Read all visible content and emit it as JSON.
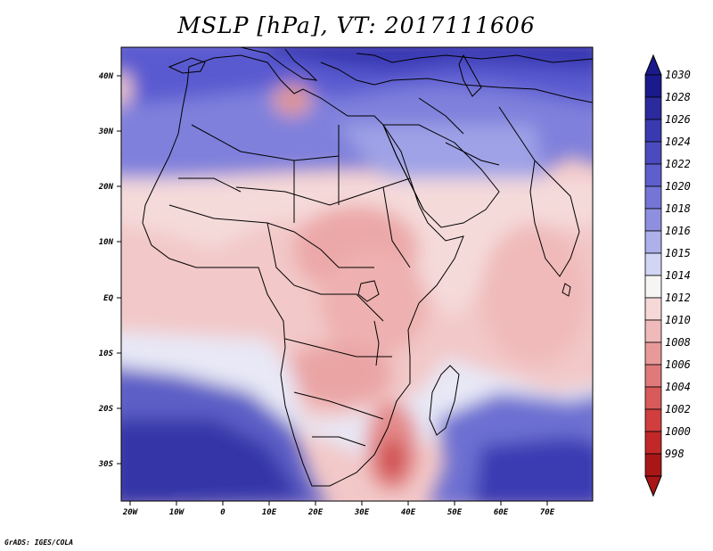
{
  "title": "MSLP [hPa], VT: 2017111606",
  "credit": "GrADS: IGES/COLA",
  "lat_labels": [
    "40N",
    "30N",
    "20N",
    "10N",
    "EQ",
    "10S",
    "20S",
    "30S"
  ],
  "lon_labels": [
    "20W",
    "10W",
    "0",
    "10E",
    "20E",
    "30E",
    "40E",
    "50E",
    "60E",
    "70E"
  ],
  "colorbar": {
    "levels": [
      "1030",
      "1028",
      "1026",
      "1024",
      "1022",
      "1020",
      "1018",
      "1016",
      "1015",
      "1014",
      "1012",
      "1010",
      "1008",
      "1006",
      "1004",
      "1002",
      "1000",
      "998"
    ],
    "colors": [
      "#1a1a8c",
      "#2b2b9e",
      "#3a3ab0",
      "#4b4bbf",
      "#5e5ecc",
      "#7575d6",
      "#8f8fe0",
      "#aeb0ea",
      "#d2d6f4",
      "#f7f4f4",
      "#f6d8d8",
      "#f0baba",
      "#e89a9a",
      "#e07a7a",
      "#d85a5a",
      "#d03e3e",
      "#c22828",
      "#a81616"
    ]
  }
}
